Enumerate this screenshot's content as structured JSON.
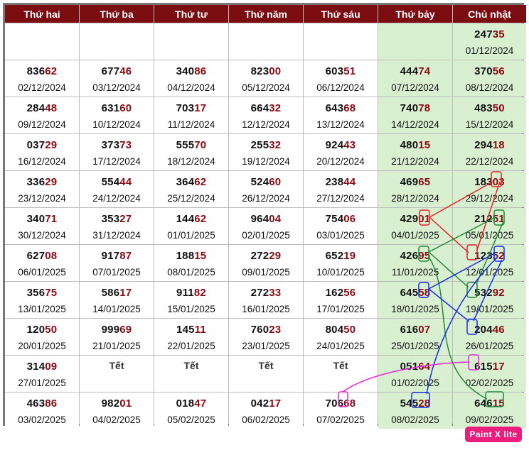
{
  "headers": [
    "Thứ hai",
    "Thứ ba",
    "Thứ tư",
    "Thứ năm",
    "Thứ sáu",
    "Thứ bảy",
    "Chủ nhật"
  ],
  "rows": [
    [
      {
        "empty": true
      },
      {
        "empty": true
      },
      {
        "empty": true
      },
      {
        "empty": true
      },
      {
        "empty": true
      },
      {
        "empty": true
      },
      {
        "head": "247",
        "tail": "35",
        "date": "01/12/2024"
      }
    ],
    [
      {
        "head": "836",
        "tail": "62",
        "date": "02/12/2024"
      },
      {
        "head": "677",
        "tail": "46",
        "date": "03/12/2024"
      },
      {
        "head": "340",
        "tail": "86",
        "date": "04/12/2024"
      },
      {
        "head": "823",
        "tail": "00",
        "date": "05/12/2024"
      },
      {
        "head": "603",
        "tail": "51",
        "date": "06/12/2024"
      },
      {
        "head": "444",
        "tail": "74",
        "date": "07/12/2024"
      },
      {
        "head": "370",
        "tail": "56",
        "date": "08/12/2024"
      }
    ],
    [
      {
        "head": "284",
        "tail": "48",
        "date": "09/12/2024"
      },
      {
        "head": "631",
        "tail": "60",
        "date": "10/12/2024"
      },
      {
        "head": "703",
        "tail": "17",
        "date": "11/12/2024"
      },
      {
        "head": "664",
        "tail": "32",
        "date": "12/12/2024"
      },
      {
        "head": "643",
        "tail": "68",
        "date": "13/12/2024"
      },
      {
        "head": "740",
        "tail": "78",
        "date": "14/12/2024"
      },
      {
        "head": "483",
        "tail": "50",
        "date": "15/12/2024"
      }
    ],
    [
      {
        "head": "037",
        "tail": "29",
        "date": "16/12/2024"
      },
      {
        "head": "373",
        "tail": "73",
        "date": "17/12/2024"
      },
      {
        "head": "555",
        "tail": "70",
        "date": "18/12/2024"
      },
      {
        "head": "255",
        "tail": "32",
        "date": "19/12/2024"
      },
      {
        "head": "924",
        "tail": "43",
        "date": "20/12/2024"
      },
      {
        "head": "480",
        "tail": "15",
        "date": "21/12/2024"
      },
      {
        "head": "294",
        "tail": "18",
        "date": "22/12/2024"
      }
    ],
    [
      {
        "head": "336",
        "tail": "29",
        "date": "23/12/2024"
      },
      {
        "head": "554",
        "tail": "44",
        "date": "24/12/2024"
      },
      {
        "head": "364",
        "tail": "62",
        "date": "25/12/2024"
      },
      {
        "head": "524",
        "tail": "60",
        "date": "26/12/2024"
      },
      {
        "head": "238",
        "tail": "44",
        "date": "27/12/2024"
      },
      {
        "head": "469",
        "tail": "65",
        "date": "28/12/2024"
      },
      {
        "head": "183",
        "tail": "03",
        "date": "29/12/2024"
      }
    ],
    [
      {
        "head": "340",
        "tail": "71",
        "date": "30/12/2024"
      },
      {
        "head": "353",
        "tail": "27",
        "date": "31/12/2024"
      },
      {
        "head": "144",
        "tail": "62",
        "date": "01/01/2025"
      },
      {
        "head": "964",
        "tail": "04",
        "date": "02/01/2025"
      },
      {
        "head": "754",
        "tail": "06",
        "date": "03/01/2025"
      },
      {
        "head": "429",
        "tail": "01",
        "date": "04/01/2025"
      },
      {
        "head": "212",
        "tail": "51",
        "date": "05/01/2025"
      }
    ],
    [
      {
        "head": "627",
        "tail": "08",
        "date": "06/01/2025"
      },
      {
        "head": "917",
        "tail": "87",
        "date": "07/01/2025"
      },
      {
        "head": "188",
        "tail": "15",
        "date": "08/01/2025"
      },
      {
        "head": "272",
        "tail": "29",
        "date": "09/01/2025"
      },
      {
        "head": "652",
        "tail": "19",
        "date": "10/01/2025"
      },
      {
        "head": "426",
        "tail": "95",
        "date": "11/01/2025"
      },
      {
        "head": "123",
        "tail": "52",
        "date": "12/01/2025"
      }
    ],
    [
      {
        "head": "356",
        "tail": "75",
        "date": "13/01/2025"
      },
      {
        "head": "586",
        "tail": "17",
        "date": "14/01/2025"
      },
      {
        "head": "911",
        "tail": "82",
        "date": "15/01/2025"
      },
      {
        "head": "272",
        "tail": "33",
        "date": "16/01/2025"
      },
      {
        "head": "162",
        "tail": "56",
        "date": "17/01/2025"
      },
      {
        "head": "645",
        "tail": "58",
        "date": "18/01/2025"
      },
      {
        "head": "532",
        "tail": "92",
        "date": "19/01/2025"
      }
    ],
    [
      {
        "head": "120",
        "tail": "50",
        "date": "20/01/2025"
      },
      {
        "head": "999",
        "tail": "69",
        "date": "21/01/2025"
      },
      {
        "head": "145",
        "tail": "11",
        "date": "22/01/2025"
      },
      {
        "head": "760",
        "tail": "23",
        "date": "23/01/2025"
      },
      {
        "head": "804",
        "tail": "50",
        "date": "24/01/2025"
      },
      {
        "head": "616",
        "tail": "07",
        "date": "25/01/2025"
      },
      {
        "head": "204",
        "tail": "46",
        "date": "26/01/2025"
      }
    ],
    [
      {
        "head": "314",
        "tail": "09",
        "date": "27/01/2025"
      },
      {
        "holiday": "Tết"
      },
      {
        "holiday": "Tết"
      },
      {
        "holiday": "Tết"
      },
      {
        "holiday": "Tết"
      },
      {
        "head": "051",
        "tail": "64",
        "date": "01/02/2025"
      },
      {
        "head": "615",
        "tail": "17",
        "date": "02/02/2025"
      }
    ],
    [
      {
        "head": "463",
        "tail": "86",
        "date": "03/02/2025"
      },
      {
        "head": "982",
        "tail": "01",
        "date": "04/02/2025"
      },
      {
        "head": "018",
        "tail": "47",
        "date": "05/02/2025"
      },
      {
        "head": "042",
        "tail": "17",
        "date": "06/02/2025"
      },
      {
        "head": "706",
        "tail": "68",
        "date": "07/02/2025"
      },
      {
        "head": "545",
        "tail": "28",
        "date": "08/02/2025"
      },
      {
        "head": "646",
        "tail": "15",
        "date": "09/02/2025"
      }
    ]
  ],
  "colors": {
    "header_bg": "#7b0d11",
    "tail_digits": "#8b0a12",
    "weekend_bg": "#d8efd0",
    "mark_red": "#e8232a",
    "mark_green": "#1e8a3a",
    "mark_blue": "#1a2fe6",
    "mark_magenta": "#e826d8"
  },
  "annotation_marks": [
    {
      "digit": "1",
      "color": "red"
    },
    {
      "digit": "3",
      "color": "red"
    },
    {
      "digit": "1",
      "color": "red"
    },
    {
      "digit": "5",
      "color": "green"
    },
    {
      "digit": "1",
      "color": "green"
    },
    {
      "digit": "3",
      "color": "green"
    },
    {
      "digit": "1",
      "color": "green"
    },
    {
      "digit": "2",
      "color": "blue"
    },
    {
      "digit": "8",
      "color": "blue"
    },
    {
      "digit": "2",
      "color": "blue"
    },
    {
      "digit": "8",
      "color": "blue"
    },
    {
      "digit": "6",
      "color": "magenta"
    },
    {
      "digit": "6",
      "color": "magenta"
    }
  ],
  "watermark": "Paint X lite"
}
